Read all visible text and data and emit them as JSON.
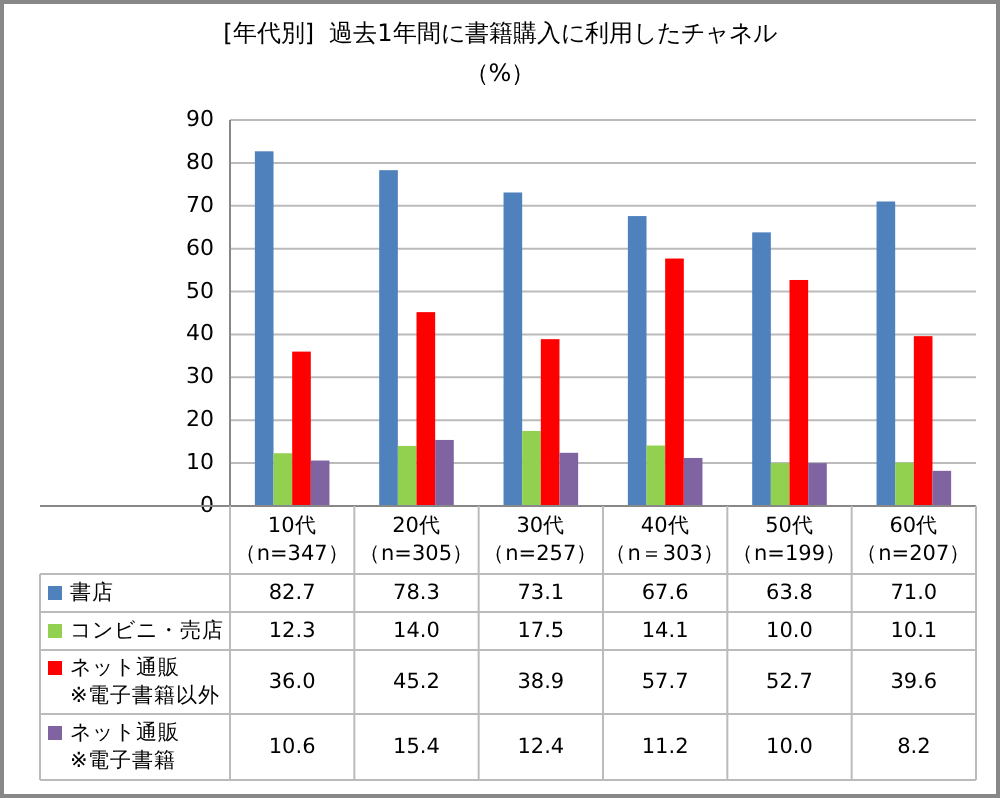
{
  "chart_data": {
    "type": "bar",
    "title": "[年代別]  過去1年間に書籍購入に利用したチャネル",
    "subtitle": "（%）",
    "categories": [
      "10代（n=347）",
      "20代（n=305）",
      "30代（n=257）",
      "40代（n＝303）",
      "50代（n=199）",
      "60代（n=207）"
    ],
    "series": [
      {
        "name": "書店",
        "color": "#4f81bd",
        "values": [
          82.7,
          78.3,
          73.1,
          67.6,
          63.8,
          71.0
        ],
        "value_labels": [
          "82.7",
          "78.3",
          "73.1",
          "67.6",
          "63.8",
          "71.0"
        ]
      },
      {
        "name": "コンビニ・売店",
        "color": "#92d050",
        "values": [
          12.3,
          14.0,
          17.5,
          14.1,
          10.0,
          10.1
        ],
        "value_labels": [
          "12.3",
          "14.0",
          "17.5",
          "14.1",
          "10.0",
          "10.1"
        ]
      },
      {
        "name": "ネット通販※電子書籍以外",
        "color": "#ff0000",
        "values": [
          36.0,
          45.2,
          38.9,
          57.7,
          52.7,
          39.6
        ],
        "value_labels": [
          "36.0",
          "45.2",
          "38.9",
          "57.7",
          "52.7",
          "39.6"
        ]
      },
      {
        "name": "ネット通販※電子書籍",
        "color": "#8064a2",
        "values": [
          10.6,
          15.4,
          12.4,
          11.2,
          10.0,
          8.2
        ],
        "value_labels": [
          "10.6",
          "15.4",
          "12.4",
          "11.2",
          "10.0",
          "8.2"
        ]
      }
    ],
    "ylim": [
      0,
      90
    ],
    "yticks": [
      0,
      10,
      20,
      30,
      40,
      50,
      60,
      70,
      80,
      90
    ],
    "grid": "y",
    "legend": "bottom"
  }
}
